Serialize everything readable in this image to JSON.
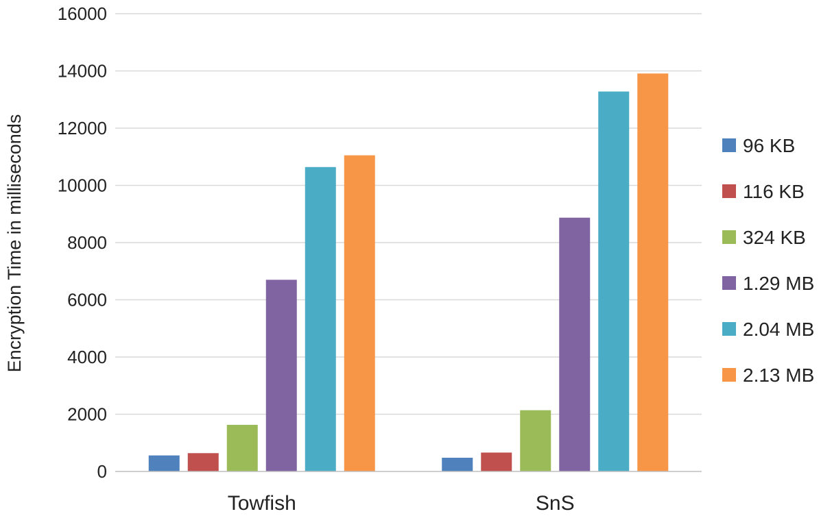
{
  "chart_data": {
    "type": "bar",
    "categories": [
      "Towfish",
      "SnS"
    ],
    "series": [
      {
        "name": "96 KB",
        "values": [
          560,
          480
        ],
        "color": "#4f81bd"
      },
      {
        "name": "116 KB",
        "values": [
          640,
          660
        ],
        "color": "#c0504d"
      },
      {
        "name": "324 KB",
        "values": [
          1630,
          2140
        ],
        "color": "#9bbb59"
      },
      {
        "name": "1.29 MB",
        "values": [
          6700,
          8870
        ],
        "color": "#8064a2"
      },
      {
        "name": "2.04 MB",
        "values": [
          10640,
          13280
        ],
        "color": "#4bacc6"
      },
      {
        "name": "2.13 MB",
        "values": [
          11050,
          13910
        ],
        "color": "#f79646"
      }
    ],
    "yticks": [
      "0",
      "2000",
      "4000",
      "6000",
      "8000",
      "10000",
      "12000",
      "14000",
      "16000"
    ],
    "ylim": [
      0,
      16000
    ],
    "ylabel": "Encryption Time in milliseconds",
    "xlabel": "",
    "title": "",
    "grid": true,
    "legend_position": "right"
  }
}
